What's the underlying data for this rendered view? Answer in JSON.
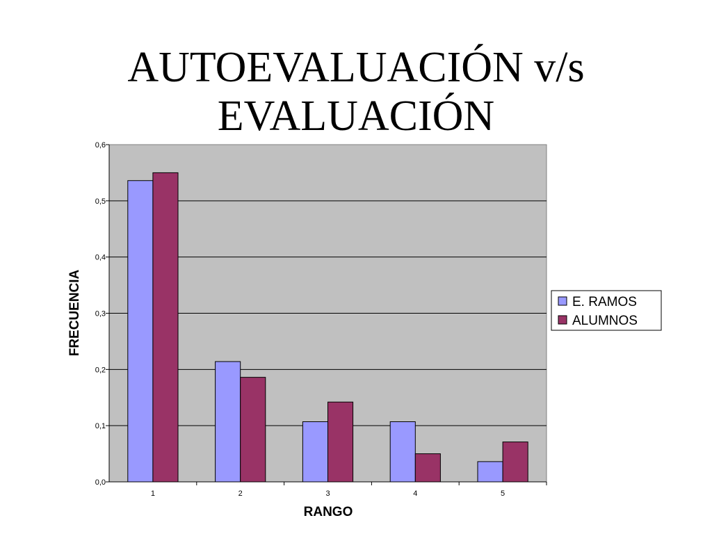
{
  "slide": {
    "title_line1": "AUTOEVALUACIÓN v/s",
    "title_line2": "EVALUACIÓN"
  },
  "chart_data": {
    "type": "bar",
    "categories": [
      "1",
      "2",
      "3",
      "4",
      "5"
    ],
    "series": [
      {
        "name": "E. RAMOS",
        "values": [
          0.536,
          0.214,
          0.107,
          0.107,
          0.036
        ],
        "color": "#9999ff"
      },
      {
        "name": "ALUMNOS",
        "values": [
          0.55,
          0.186,
          0.142,
          0.05,
          0.071
        ],
        "color": "#993366"
      }
    ],
    "xlabel": "RANGO",
    "ylabel": "FRECUENCIA",
    "ylim": [
      0,
      0.6
    ],
    "yticks": [
      "0,0",
      "0,1",
      "0,2",
      "0,3",
      "0,4",
      "0,5",
      "0,6"
    ],
    "grid": true,
    "plot_background": "#c0c0c0",
    "legend_position": "right"
  }
}
